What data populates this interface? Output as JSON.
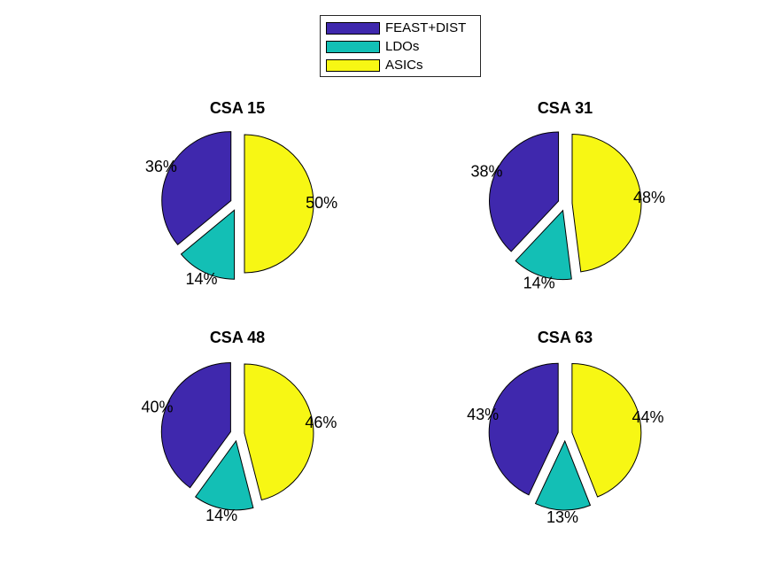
{
  "legend": {
    "entries": [
      {
        "label": "FEAST+DIST",
        "color": "#3f28ad"
      },
      {
        "label": "LDOs",
        "color": "#13bfb5"
      },
      {
        "label": "ASICs",
        "color": "#f7f714"
      }
    ]
  },
  "chart_data": [
    {
      "type": "pie",
      "title": "CSA 15",
      "labels": [
        "FEAST+DIST",
        "LDOs",
        "ASICs"
      ],
      "values": [
        36,
        14,
        50
      ],
      "value_labels": [
        "36%",
        "14%",
        "50%"
      ],
      "exploded": true
    },
    {
      "type": "pie",
      "title": "CSA 31",
      "labels": [
        "FEAST+DIST",
        "LDOs",
        "ASICs"
      ],
      "values": [
        38,
        14,
        48
      ],
      "value_labels": [
        "38%",
        "14%",
        "48%"
      ],
      "exploded": true
    },
    {
      "type": "pie",
      "title": "CSA 48",
      "labels": [
        "FEAST+DIST",
        "LDOs",
        "ASICs"
      ],
      "values": [
        40,
        14,
        46
      ],
      "value_labels": [
        "40%",
        "14%",
        "46%"
      ],
      "exploded": true
    },
    {
      "type": "pie",
      "title": "CSA 63",
      "labels": [
        "FEAST+DIST",
        "LDOs",
        "ASICs"
      ],
      "values": [
        43,
        13,
        44
      ],
      "value_labels": [
        "43%",
        "13%",
        "44%"
      ],
      "exploded": true
    }
  ]
}
